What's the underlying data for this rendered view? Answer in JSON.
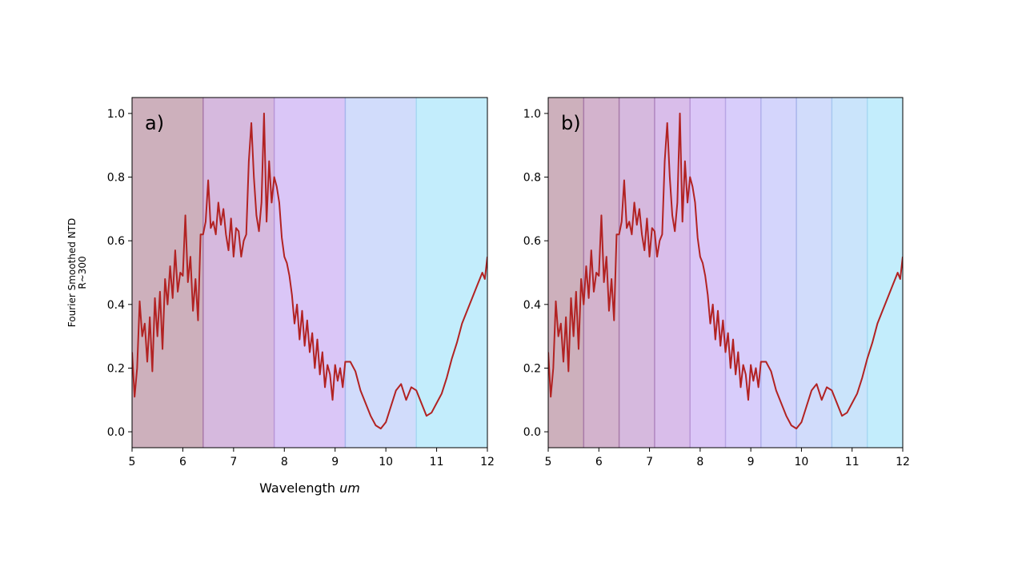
{
  "figure": {
    "ylabel_line1": "Fourier Smoothed NTD",
    "ylabel_line2": "R~300",
    "xlabel_prefix": "Wavelength ",
    "xlabel_unit": "um"
  },
  "colors": {
    "line": "#b22222",
    "band_a": [
      "#cdb0bc",
      "#d6b9de",
      "#dac6f7",
      "#d1dcfb",
      "#c3edfc"
    ],
    "band_b": [
      "#cdb0bc",
      "#d3b3cd",
      "#d6b9de",
      "#d9bdea",
      "#dac6f7",
      "#d8cdfb",
      "#d4d5fc",
      "#d1dcfb",
      "#cae4fb",
      "#c3edfc"
    ],
    "divider_a": [
      "#a87aa8",
      "#b896d6",
      "#a8b6ec",
      "#a7d8f2"
    ],
    "divider_b": [
      "#a87aa8",
      "#a87aa8",
      "#b086c0",
      "#b896d6",
      "#b8a6e6",
      "#b0b0ec",
      "#a8b6ec",
      "#a7c8f0",
      "#a7d8f2"
    ]
  },
  "chart_data": [
    {
      "type": "line",
      "panel_label": "a)",
      "xlim": [
        5,
        12
      ],
      "ylim": [
        -0.05,
        1.05
      ],
      "xticks": [
        "5",
        "6",
        "7",
        "8",
        "9",
        "10",
        "11",
        "12"
      ],
      "yticks": [
        "0.0",
        "0.2",
        "0.4",
        "0.6",
        "0.8",
        "1.0"
      ],
      "band_edges": [
        5,
        6.4,
        7.8,
        9.2,
        10.6,
        12
      ],
      "series": [
        {
          "x": [
            5.0,
            5.05,
            5.1,
            5.15,
            5.2,
            5.25,
            5.3,
            5.35,
            5.4,
            5.45,
            5.5,
            5.55,
            5.6,
            5.65,
            5.7,
            5.75,
            5.8,
            5.85,
            5.9,
            5.95,
            6.0,
            6.05,
            6.1,
            6.15,
            6.2,
            6.25,
            6.3,
            6.35,
            6.4,
            6.45,
            6.5,
            6.55,
            6.6,
            6.65,
            6.7,
            6.75,
            6.8,
            6.85,
            6.9,
            6.95,
            7.0,
            7.05,
            7.1,
            7.15,
            7.2,
            7.25,
            7.3,
            7.35,
            7.4,
            7.45,
            7.5,
            7.55,
            7.6,
            7.65,
            7.7,
            7.75,
            7.8,
            7.85,
            7.9,
            7.95,
            8.0,
            8.05,
            8.1,
            8.15,
            8.2,
            8.25,
            8.3,
            8.35,
            8.4,
            8.45,
            8.5,
            8.55,
            8.6,
            8.65,
            8.7,
            8.75,
            8.8,
            8.85,
            8.9,
            8.95,
            9.0,
            9.05,
            9.1,
            9.15,
            9.2,
            9.3,
            9.4,
            9.5,
            9.6,
            9.7,
            9.8,
            9.9,
            10.0,
            10.1,
            10.2,
            10.3,
            10.4,
            10.5,
            10.6,
            10.7,
            10.8,
            10.9,
            11.0,
            11.1,
            11.2,
            11.3,
            11.4,
            11.5,
            11.6,
            11.7,
            11.8,
            11.85,
            11.9,
            11.95,
            12.0
          ],
          "y": [
            0.25,
            0.11,
            0.2,
            0.41,
            0.3,
            0.34,
            0.22,
            0.36,
            0.19,
            0.42,
            0.3,
            0.44,
            0.26,
            0.48,
            0.4,
            0.52,
            0.42,
            0.57,
            0.44,
            0.5,
            0.49,
            0.68,
            0.47,
            0.55,
            0.38,
            0.48,
            0.35,
            0.62,
            0.62,
            0.66,
            0.79,
            0.64,
            0.66,
            0.62,
            0.72,
            0.65,
            0.7,
            0.62,
            0.57,
            0.67,
            0.55,
            0.64,
            0.63,
            0.55,
            0.6,
            0.62,
            0.85,
            0.97,
            0.8,
            0.68,
            0.63,
            0.72,
            1.0,
            0.66,
            0.85,
            0.72,
            0.8,
            0.77,
            0.72,
            0.61,
            0.55,
            0.53,
            0.49,
            0.43,
            0.34,
            0.4,
            0.29,
            0.38,
            0.27,
            0.35,
            0.25,
            0.31,
            0.2,
            0.29,
            0.18,
            0.25,
            0.14,
            0.21,
            0.18,
            0.1,
            0.21,
            0.16,
            0.2,
            0.14,
            0.22,
            0.22,
            0.19,
            0.13,
            0.09,
            0.05,
            0.02,
            0.01,
            0.03,
            0.08,
            0.13,
            0.15,
            0.1,
            0.14,
            0.13,
            0.09,
            0.05,
            0.06,
            0.09,
            0.12,
            0.17,
            0.23,
            0.28,
            0.34,
            0.38,
            0.42,
            0.46,
            0.48,
            0.5,
            0.48,
            0.55
          ],
          "color": "#b22222"
        }
      ]
    },
    {
      "type": "line",
      "panel_label": "b)",
      "xlim": [
        5,
        12
      ],
      "ylim": [
        -0.05,
        1.05
      ],
      "xticks": [
        "5",
        "6",
        "7",
        "8",
        "9",
        "10",
        "11",
        "12"
      ],
      "yticks": [
        "0.0",
        "0.2",
        "0.4",
        "0.6",
        "0.8",
        "1.0"
      ],
      "band_edges": [
        5,
        5.7,
        6.4,
        7.1,
        7.8,
        8.5,
        9.2,
        9.9,
        10.6,
        11.3,
        12
      ],
      "series": [
        {
          "x": [
            5.0,
            5.05,
            5.1,
            5.15,
            5.2,
            5.25,
            5.3,
            5.35,
            5.4,
            5.45,
            5.5,
            5.55,
            5.6,
            5.65,
            5.7,
            5.75,
            5.8,
            5.85,
            5.9,
            5.95,
            6.0,
            6.05,
            6.1,
            6.15,
            6.2,
            6.25,
            6.3,
            6.35,
            6.4,
            6.45,
            6.5,
            6.55,
            6.6,
            6.65,
            6.7,
            6.75,
            6.8,
            6.85,
            6.9,
            6.95,
            7.0,
            7.05,
            7.1,
            7.15,
            7.2,
            7.25,
            7.3,
            7.35,
            7.4,
            7.45,
            7.5,
            7.55,
            7.6,
            7.65,
            7.7,
            7.75,
            7.8,
            7.85,
            7.9,
            7.95,
            8.0,
            8.05,
            8.1,
            8.15,
            8.2,
            8.25,
            8.3,
            8.35,
            8.4,
            8.45,
            8.5,
            8.55,
            8.6,
            8.65,
            8.7,
            8.75,
            8.8,
            8.85,
            8.9,
            8.95,
            9.0,
            9.05,
            9.1,
            9.15,
            9.2,
            9.3,
            9.4,
            9.5,
            9.6,
            9.7,
            9.8,
            9.9,
            10.0,
            10.1,
            10.2,
            10.3,
            10.4,
            10.5,
            10.6,
            10.7,
            10.8,
            10.9,
            11.0,
            11.1,
            11.2,
            11.3,
            11.4,
            11.5,
            11.6,
            11.7,
            11.8,
            11.85,
            11.9,
            11.95,
            12.0
          ],
          "y": [
            0.25,
            0.11,
            0.2,
            0.41,
            0.3,
            0.34,
            0.22,
            0.36,
            0.19,
            0.42,
            0.3,
            0.44,
            0.26,
            0.48,
            0.4,
            0.52,
            0.42,
            0.57,
            0.44,
            0.5,
            0.49,
            0.68,
            0.47,
            0.55,
            0.38,
            0.48,
            0.35,
            0.62,
            0.62,
            0.66,
            0.79,
            0.64,
            0.66,
            0.62,
            0.72,
            0.65,
            0.7,
            0.62,
            0.57,
            0.67,
            0.55,
            0.64,
            0.63,
            0.55,
            0.6,
            0.62,
            0.85,
            0.97,
            0.8,
            0.68,
            0.63,
            0.72,
            1.0,
            0.66,
            0.85,
            0.72,
            0.8,
            0.77,
            0.72,
            0.61,
            0.55,
            0.53,
            0.49,
            0.43,
            0.34,
            0.4,
            0.29,
            0.38,
            0.27,
            0.35,
            0.25,
            0.31,
            0.2,
            0.29,
            0.18,
            0.25,
            0.14,
            0.21,
            0.18,
            0.1,
            0.21,
            0.16,
            0.2,
            0.14,
            0.22,
            0.22,
            0.19,
            0.13,
            0.09,
            0.05,
            0.02,
            0.01,
            0.03,
            0.08,
            0.13,
            0.15,
            0.1,
            0.14,
            0.13,
            0.09,
            0.05,
            0.06,
            0.09,
            0.12,
            0.17,
            0.23,
            0.28,
            0.34,
            0.38,
            0.42,
            0.46,
            0.48,
            0.5,
            0.48,
            0.55
          ],
          "color": "#b22222"
        }
      ]
    }
  ]
}
